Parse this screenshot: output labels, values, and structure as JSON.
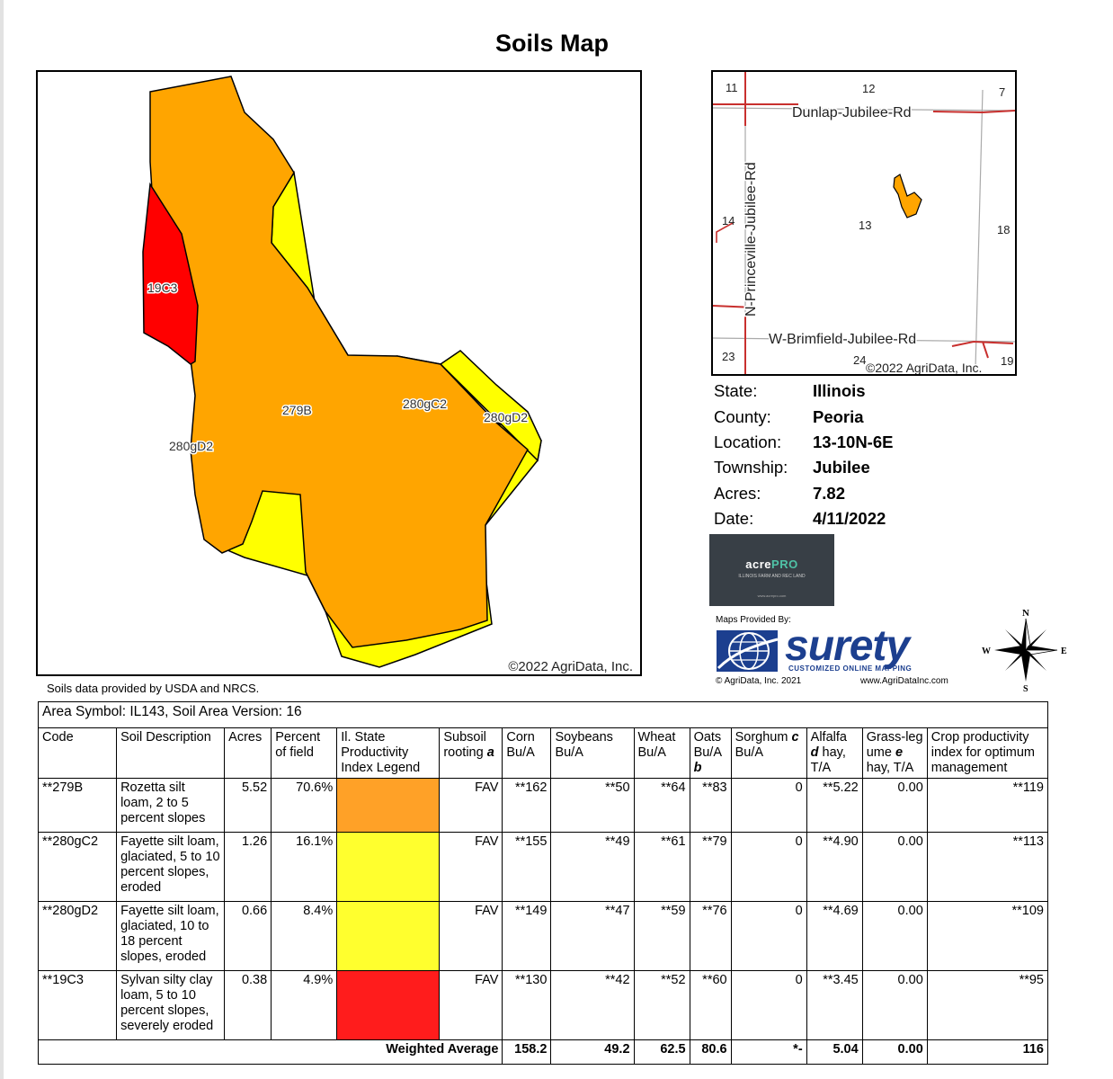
{
  "title": "Soils Map",
  "map": {
    "labels": {
      "s19c3": "19C3",
      "s279b": "279B",
      "s280gc2": "280gC2",
      "s280gd2_right": "280gD2",
      "s280gd2_left": "280gD2"
    },
    "copyright": "©2022 AgriData, Inc.",
    "colors": {
      "279B": "#ffa500",
      "280gC2": "#ffff00",
      "280gD2": "#ffff00",
      "19C3": "#ff0000"
    }
  },
  "data_credit": "Soils data provided by USDA and NRCS.",
  "locator": {
    "sections": [
      "11",
      "12",
      "7",
      "14",
      "13",
      "18",
      "23",
      "24",
      "19"
    ],
    "roads": {
      "north": "Dunlap-Jubilee-Rd",
      "west": "N-Princeville-Jubilee-Rd",
      "south": "W-Brimfield-Jubilee-Rd"
    },
    "copyright": "©2022 AgriData, Inc."
  },
  "info": [
    {
      "label": "State:",
      "value": "Illinois"
    },
    {
      "label": "County:",
      "value": "Peoria"
    },
    {
      "label": "Location:",
      "value": "13-10N-6E"
    },
    {
      "label": "Township:",
      "value": "Jubilee"
    },
    {
      "label": "Acres:",
      "value": "7.82"
    },
    {
      "label": "Date:",
      "value": "4/11/2022"
    }
  ],
  "acrepro": {
    "brand_a": "acre",
    "brand_b": "PRO",
    "tagline": "ILLINOIS FARM AND REC LAND",
    "url": "www.acrepro.com"
  },
  "surety": {
    "provided_by": "Maps Provided By:",
    "wordmark": "surety",
    "subtitle": "CUSTOMIZED ONLINE MAPPING",
    "copyright": "© AgriData, Inc. 2021",
    "url": "www.AgriDataInc.com"
  },
  "compass": {
    "n": "N",
    "s": "S",
    "e": "E",
    "w": "W"
  },
  "table": {
    "area_symbol": "Area Symbol: IL143, Soil Area Version: 16",
    "headers": {
      "code": "Code",
      "desc": "Soil Description",
      "acres": "Acres",
      "pct": "Percent of field",
      "legend": "Il. State Productivity Index Legend",
      "subsoil": "Subsoil rooting",
      "subsoil_note": "a",
      "corn": "Corn Bu/A",
      "soy": "Soybeans Bu/A",
      "wheat": "Wheat Bu/A",
      "oats": "Oats Bu/A",
      "oats_note": "b",
      "sorghum": "Sorghum",
      "sorghum_note": "c",
      "sorghum_unit": "Bu/A",
      "alfalfa": "Alfalfa",
      "alfalfa_note": "d",
      "alfalfa_unit": "hay, T/A",
      "grass_a": "Grass-leg",
      "grass_b": "ume",
      "grass_note": "e",
      "grass_unit": "hay, T/A",
      "cpi": "Crop productivity index for optimum management"
    },
    "rows": [
      {
        "code": "**279B",
        "desc": "Rozetta silt loam, 2 to 5 percent slopes",
        "acres": "5.52",
        "pct": "70.6%",
        "color": "#ffa127",
        "subsoil": "FAV",
        "corn": "**162",
        "soy": "**50",
        "wheat": "**64",
        "oats": "**83",
        "sorghum": "0",
        "alfalfa": "**5.22",
        "grass": "0.00",
        "cpi": "**119"
      },
      {
        "code": "**280gC2",
        "desc": "Fayette silt loam, glaciated, 5 to 10 percent slopes, eroded",
        "acres": "1.26",
        "pct": "16.1%",
        "color": "#ffff2e",
        "subsoil": "FAV",
        "corn": "**155",
        "soy": "**49",
        "wheat": "**61",
        "oats": "**79",
        "sorghum": "0",
        "alfalfa": "**4.90",
        "grass": "0.00",
        "cpi": "**113"
      },
      {
        "code": "**280gD2",
        "desc": "Fayette silt loam, glaciated, 10 to 18 percent slopes, eroded",
        "acres": "0.66",
        "pct": "8.4%",
        "color": "#ffff2e",
        "subsoil": "FAV",
        "corn": "**149",
        "soy": "**47",
        "wheat": "**59",
        "oats": "**76",
        "sorghum": "0",
        "alfalfa": "**4.69",
        "grass": "0.00",
        "cpi": "**109"
      },
      {
        "code": "**19C3",
        "desc": "Sylvan silty clay loam, 5 to 10 percent slopes, severely eroded",
        "acres": "0.38",
        "pct": "4.9%",
        "color": "#ff1c1c",
        "subsoil": "FAV",
        "corn": "**130",
        "soy": "**42",
        "wheat": "**52",
        "oats": "**60",
        "sorghum": "0",
        "alfalfa": "**3.45",
        "grass": "0.00",
        "cpi": "**95"
      }
    ],
    "weighted": {
      "label": "Weighted Average",
      "corn": "158.2",
      "soy": "49.2",
      "wheat": "62.5",
      "oats": "80.6",
      "sorghum": "*-",
      "alfalfa": "5.04",
      "grass": "0.00",
      "cpi": "116"
    }
  }
}
